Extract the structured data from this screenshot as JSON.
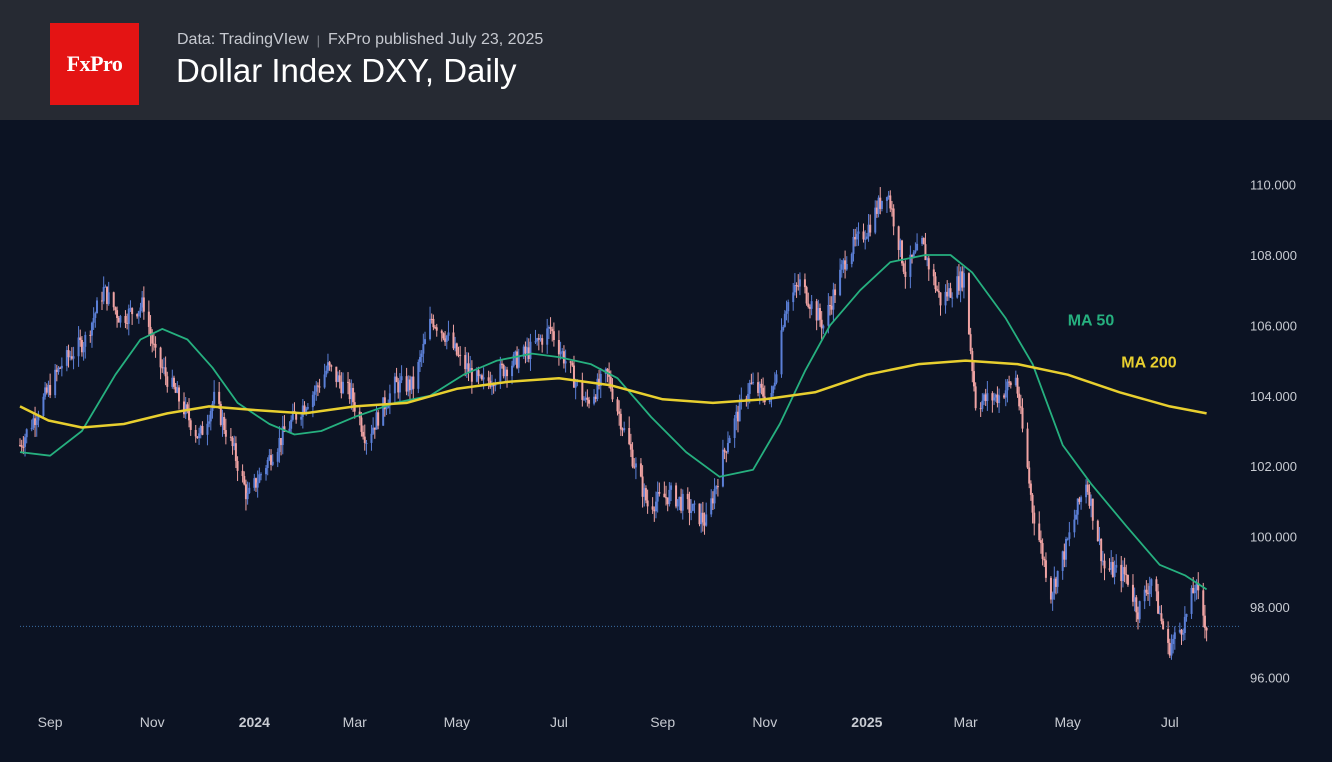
{
  "header": {
    "logo_text": "FxPro",
    "source": "Data: TradingVIew",
    "published": "FxPro published July 23, 2025",
    "title": "Dollar Index DXY, Daily"
  },
  "colors": {
    "background": "#0c1323",
    "header_bg": "#262a33",
    "logo_bg": "#e41414",
    "candle_up": "#5b7fd6",
    "candle_down": "#f0a3a3",
    "ma50": "#26b07f",
    "ma200": "#e8cf2f",
    "last_price_line": "#3a6ea5"
  },
  "chart_data": {
    "type": "candlestick",
    "title": "Dollar Index DXY, Daily",
    "y_axis": {
      "position": "right",
      "range": [
        95.5,
        110.7
      ],
      "ticks": [
        "96.000",
        "98.000",
        "100.000",
        "102.000",
        "104.000",
        "106.000",
        "108.000",
        "110.000"
      ],
      "tick_values": [
        96,
        98,
        100,
        102,
        104,
        106,
        108,
        110
      ]
    },
    "x_axis": {
      "range": [
        "2023-08-14",
        "2025-07-31"
      ],
      "ticks": [
        {
          "label": "Sep",
          "date": "2023-09-01",
          "bold": false
        },
        {
          "label": "Nov",
          "date": "2023-11-01",
          "bold": false
        },
        {
          "label": "2024",
          "date": "2024-01-01",
          "bold": true
        },
        {
          "label": "Mar",
          "date": "2024-03-01",
          "bold": false
        },
        {
          "label": "May",
          "date": "2024-05-01",
          "bold": false
        },
        {
          "label": "Jul",
          "date": "2024-07-01",
          "bold": false
        },
        {
          "label": "Sep",
          "date": "2024-09-01",
          "bold": false
        },
        {
          "label": "Nov",
          "date": "2024-11-01",
          "bold": false
        },
        {
          "label": "2025",
          "date": "2025-01-01",
          "bold": true
        },
        {
          "label": "Mar",
          "date": "2025-03-01",
          "bold": false
        },
        {
          "label": "May",
          "date": "2025-05-01",
          "bold": false
        },
        {
          "label": "Jul",
          "date": "2025-07-01",
          "bold": false
        }
      ]
    },
    "grid": false,
    "last_price": 97.45,
    "price_path": [
      [
        "2023-08-14",
        102.6
      ],
      [
        "2023-08-25",
        103.6
      ],
      [
        "2023-09-08",
        104.9
      ],
      [
        "2023-09-22",
        105.6
      ],
      [
        "2023-10-03",
        107.0
      ],
      [
        "2023-10-13",
        106.2
      ],
      [
        "2023-10-20",
        106.4
      ],
      [
        "2023-10-27",
        106.6
      ],
      [
        "2023-11-03",
        105.1
      ],
      [
        "2023-11-17",
        103.9
      ],
      [
        "2023-11-29",
        102.8
      ],
      [
        "2023-12-08",
        103.9
      ],
      [
        "2023-12-20",
        102.4
      ],
      [
        "2023-12-28",
        101.1
      ],
      [
        "2024-01-12",
        102.4
      ],
      [
        "2024-01-25",
        103.4
      ],
      [
        "2024-02-07",
        104.2
      ],
      [
        "2024-02-14",
        104.8
      ],
      [
        "2024-02-28",
        104.0
      ],
      [
        "2024-03-08",
        102.8
      ],
      [
        "2024-03-25",
        104.3
      ],
      [
        "2024-04-05",
        104.3
      ],
      [
        "2024-04-16",
        106.2
      ],
      [
        "2024-04-25",
        105.7
      ],
      [
        "2024-05-03",
        105.0
      ],
      [
        "2024-05-16",
        104.3
      ],
      [
        "2024-05-30",
        104.8
      ],
      [
        "2024-06-14",
        105.3
      ],
      [
        "2024-06-26",
        105.9
      ],
      [
        "2024-07-05",
        105.0
      ],
      [
        "2024-07-17",
        103.8
      ],
      [
        "2024-07-30",
        104.6
      ],
      [
        "2024-08-09",
        103.0
      ],
      [
        "2024-08-23",
        100.9
      ],
      [
        "2024-09-06",
        101.2
      ],
      [
        "2024-09-20",
        100.7
      ],
      [
        "2024-09-27",
        100.4
      ],
      [
        "2024-10-10",
        102.8
      ],
      [
        "2024-10-23",
        104.3
      ],
      [
        "2024-11-05",
        103.9
      ],
      [
        "2024-11-13",
        106.5
      ],
      [
        "2024-11-22",
        107.2
      ],
      [
        "2024-12-06",
        106.0
      ],
      [
        "2024-12-20",
        108.0
      ],
      [
        "2025-01-02",
        108.8
      ],
      [
        "2025-01-13",
        109.9
      ],
      [
        "2025-01-24",
        107.5
      ],
      [
        "2025-02-03",
        108.3
      ],
      [
        "2025-02-14",
        106.7
      ],
      [
        "2025-02-28",
        107.4
      ],
      [
        "2025-03-07",
        103.8
      ],
      [
        "2025-03-21",
        104.0
      ],
      [
        "2025-03-31",
        104.5
      ],
      [
        "2025-04-10",
        100.8
      ],
      [
        "2025-04-21",
        98.4
      ],
      [
        "2025-04-30",
        99.7
      ],
      [
        "2025-05-12",
        101.6
      ],
      [
        "2025-05-23",
        99.1
      ],
      [
        "2025-06-05",
        98.9
      ],
      [
        "2025-06-12",
        97.9
      ],
      [
        "2025-06-20",
        98.8
      ],
      [
        "2025-06-30",
        96.8
      ],
      [
        "2025-07-10",
        97.6
      ],
      [
        "2025-07-16",
        98.6
      ],
      [
        "2025-07-23",
        97.45
      ]
    ],
    "series": [
      {
        "name": "MA 50",
        "color": "#26b07f",
        "points": [
          [
            "2023-08-14",
            102.4
          ],
          [
            "2023-09-01",
            102.3
          ],
          [
            "2023-09-20",
            103.0
          ],
          [
            "2023-10-10",
            104.6
          ],
          [
            "2023-10-25",
            105.6
          ],
          [
            "2023-11-07",
            105.9
          ],
          [
            "2023-11-22",
            105.6
          ],
          [
            "2023-12-07",
            104.8
          ],
          [
            "2023-12-22",
            103.8
          ],
          [
            "2024-01-10",
            103.2
          ],
          [
            "2024-01-25",
            102.9
          ],
          [
            "2024-02-10",
            103.0
          ],
          [
            "2024-03-01",
            103.4
          ],
          [
            "2024-03-25",
            103.8
          ],
          [
            "2024-04-15",
            104.0
          ],
          [
            "2024-05-05",
            104.6
          ],
          [
            "2024-05-25",
            105.0
          ],
          [
            "2024-06-15",
            105.2
          ],
          [
            "2024-07-01",
            105.1
          ],
          [
            "2024-07-20",
            104.9
          ],
          [
            "2024-08-05",
            104.5
          ],
          [
            "2024-08-25",
            103.4
          ],
          [
            "2024-09-15",
            102.4
          ],
          [
            "2024-10-05",
            101.7
          ],
          [
            "2024-10-25",
            101.9
          ],
          [
            "2024-11-10",
            103.2
          ],
          [
            "2024-11-25",
            104.7
          ],
          [
            "2024-12-10",
            106.0
          ],
          [
            "2024-12-28",
            107.0
          ],
          [
            "2025-01-15",
            107.8
          ],
          [
            "2025-02-05",
            108.0
          ],
          [
            "2025-02-20",
            108.0
          ],
          [
            "2025-03-05",
            107.5
          ],
          [
            "2025-03-25",
            106.2
          ],
          [
            "2025-04-10",
            104.9
          ],
          [
            "2025-04-28",
            102.6
          ],
          [
            "2025-05-15",
            101.5
          ],
          [
            "2025-06-05",
            100.3
          ],
          [
            "2025-06-25",
            99.2
          ],
          [
            "2025-07-10",
            98.9
          ],
          [
            "2025-07-23",
            98.5
          ]
        ]
      },
      {
        "name": "MA 200",
        "color": "#e8cf2f",
        "points": [
          [
            "2023-08-14",
            103.7
          ],
          [
            "2023-08-31",
            103.3
          ],
          [
            "2023-09-20",
            103.1
          ],
          [
            "2023-10-15",
            103.2
          ],
          [
            "2023-11-10",
            103.5
          ],
          [
            "2023-12-05",
            103.7
          ],
          [
            "2023-12-31",
            103.6
          ],
          [
            "2024-01-31",
            103.5
          ],
          [
            "2024-03-01",
            103.7
          ],
          [
            "2024-04-01",
            103.8
          ],
          [
            "2024-05-01",
            104.2
          ],
          [
            "2024-06-01",
            104.4
          ],
          [
            "2024-07-01",
            104.5
          ],
          [
            "2024-08-01",
            104.3
          ],
          [
            "2024-09-01",
            103.9
          ],
          [
            "2024-10-01",
            103.8
          ],
          [
            "2024-11-01",
            103.9
          ],
          [
            "2024-12-01",
            104.1
          ],
          [
            "2025-01-01",
            104.6
          ],
          [
            "2025-02-01",
            104.9
          ],
          [
            "2025-03-01",
            105.0
          ],
          [
            "2025-04-01",
            104.9
          ],
          [
            "2025-05-01",
            104.6
          ],
          [
            "2025-06-01",
            104.1
          ],
          [
            "2025-07-01",
            103.7
          ],
          [
            "2025-07-23",
            103.5
          ]
        ]
      }
    ],
    "annotations": [
      {
        "text": "MA 50",
        "series": "MA 50",
        "date": "2025-05-01",
        "value": 106.0
      },
      {
        "text": "MA 200",
        "series": "MA 200",
        "date": "2025-06-02",
        "value": 104.8
      }
    ]
  }
}
